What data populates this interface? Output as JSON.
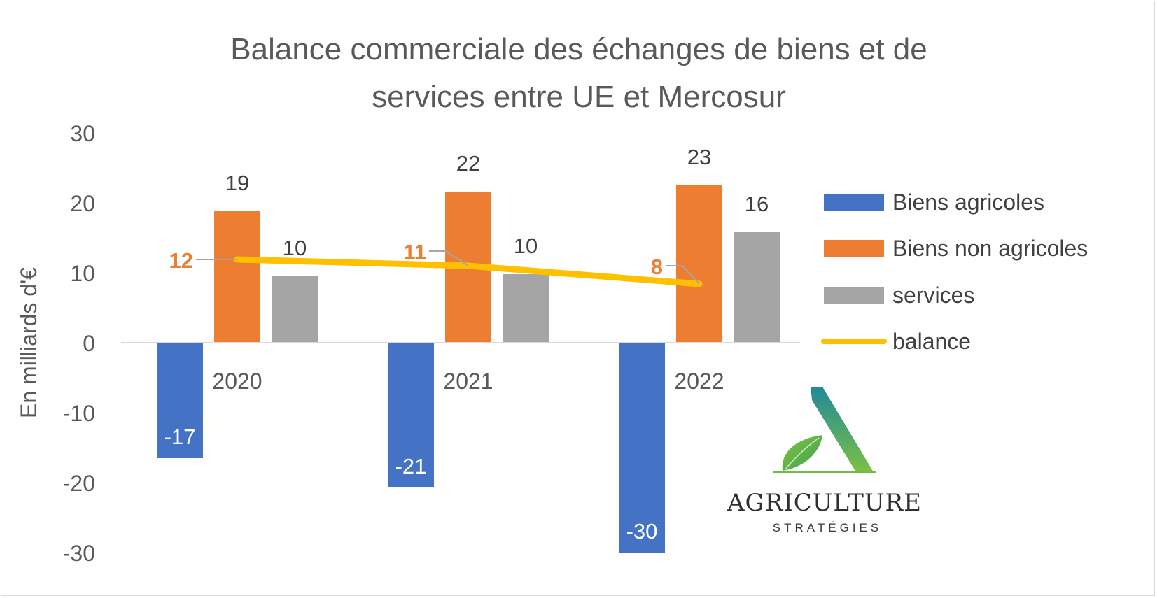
{
  "chart_data": {
    "type": "bar",
    "title": "Balance commerciale des échanges de biens et de services entre UE et Mercosur",
    "title_lines": [
      "Balance commerciale des échanges de biens et de",
      "services entre UE et Mercosur"
    ],
    "ylabel": "En milliards d'€",
    "xlabel": "",
    "ylim": [
      -30,
      30
    ],
    "yticks": [
      30,
      20,
      10,
      0,
      -10,
      -20,
      -30
    ],
    "ytick_labels": [
      "30",
      "20",
      "10",
      "0",
      "-10",
      "-20",
      "-30"
    ],
    "categories": [
      "2020",
      "2021",
      "2022"
    ],
    "series": [
      {
        "name": "Biens agricoles",
        "kind": "bar",
        "color": "#4472C4",
        "values": [
          -16.5,
          -20.7,
          -30.0
        ],
        "labels": [
          "-17",
          "-21",
          "-30"
        ]
      },
      {
        "name": "Biens non agricoles",
        "kind": "bar",
        "color": "#ED7D31",
        "values": [
          18.8,
          21.6,
          22.5
        ],
        "labels": [
          "19",
          "22",
          "23"
        ]
      },
      {
        "name": "services",
        "kind": "bar",
        "color": "#A5A5A5",
        "values": [
          9.5,
          9.8,
          15.8
        ],
        "labels": [
          "10",
          "10",
          "16"
        ]
      },
      {
        "name": "balance",
        "kind": "line",
        "color": "#FFC000",
        "values": [
          11.9,
          11.0,
          8.4
        ],
        "labels": [
          "12",
          "11",
          "8"
        ],
        "label_color": "#ED7D31"
      }
    ],
    "legend": "right",
    "grid": false
  },
  "logo": {
    "name": "AGRICULTURE",
    "subtitle": "STRATÉGIES"
  }
}
